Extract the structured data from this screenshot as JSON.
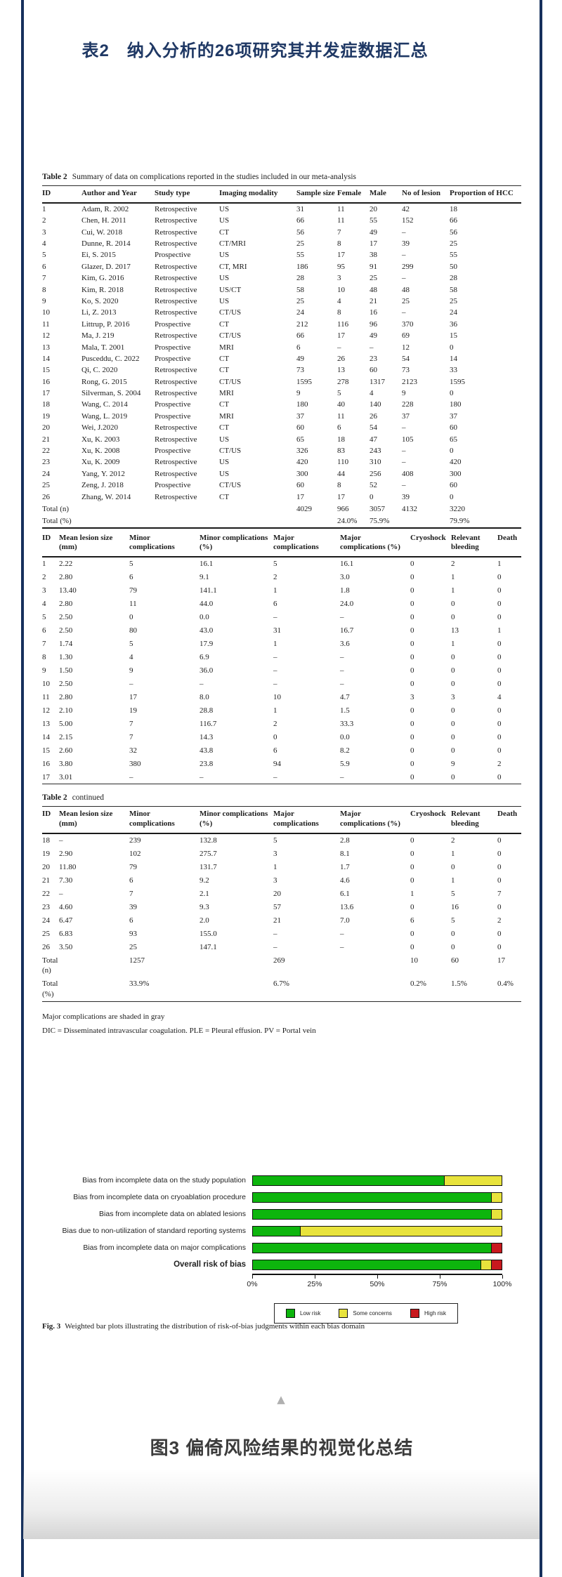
{
  "page": {
    "top_title": "表2　纳入分析的26项研究其并发症数据汇总",
    "bottom_title": "图3 偏倚风险结果的视觉化总结"
  },
  "table2a": {
    "caption_label": "Table 2",
    "caption_text": "Summary of data on complications reported in the studies included in our meta-analysis",
    "columns": [
      "ID",
      "Author and Year",
      "Study type",
      "Imaging modality",
      "Sample size",
      "Female",
      "Male",
      "No of lesion",
      "Proportion of HCC"
    ],
    "rows": [
      [
        "1",
        "Adam, R. 2002",
        "Retrospective",
        "US",
        "31",
        "11",
        "20",
        "42",
        "18"
      ],
      [
        "2",
        "Chen, H. 2011",
        "Retrospective",
        "US",
        "66",
        "11",
        "55",
        "152",
        "66"
      ],
      [
        "3",
        "Cui, W. 2018",
        "Retrospective",
        "CT",
        "56",
        "7",
        "49",
        "–",
        "56"
      ],
      [
        "4",
        "Dunne, R. 2014",
        "Retrospective",
        "CT/MRI",
        "25",
        "8",
        "17",
        "39",
        "25"
      ],
      [
        "5",
        "Ei, S. 2015",
        "Prospective",
        "US",
        "55",
        "17",
        "38",
        "–",
        "55"
      ],
      [
        "6",
        "Glazer, D. 2017",
        "Retrospective",
        "CT, MRI",
        "186",
        "95",
        "91",
        "299",
        "50"
      ],
      [
        "7",
        "Kim, G. 2016",
        "Retrospective",
        "US",
        "28",
        "3",
        "25",
        "–",
        "28"
      ],
      [
        "8",
        "Kim, R. 2018",
        "Retrospective",
        "US/CT",
        "58",
        "10",
        "48",
        "48",
        "58"
      ],
      [
        "9",
        "Ko, S. 2020",
        "Retrospective",
        "US",
        "25",
        "4",
        "21",
        "25",
        "25"
      ],
      [
        "10",
        "Li, Z. 2013",
        "Retrospective",
        "CT/US",
        "24",
        "8",
        "16",
        "–",
        "24"
      ],
      [
        "11",
        "Littrup, P. 2016",
        "Prospective",
        "CT",
        "212",
        "116",
        "96",
        "370",
        "36"
      ],
      [
        "12",
        "Ma, J. 219",
        "Retrospective",
        "CT/US",
        "66",
        "17",
        "49",
        "69",
        "15"
      ],
      [
        "13",
        "Mala, T. 2001",
        "Prospective",
        "MRI",
        "6",
        "–",
        "–",
        "12",
        "0"
      ],
      [
        "14",
        "Pusceddu, C. 2022",
        "Prospective",
        "CT",
        "49",
        "26",
        "23",
        "54",
        "14"
      ],
      [
        "15",
        "Qi, C. 2020",
        "Retrospective",
        "CT",
        "73",
        "13",
        "60",
        "73",
        "33"
      ],
      [
        "16",
        "Rong, G. 2015",
        "Retrospective",
        "CT/US",
        "1595",
        "278",
        "1317",
        "2123",
        "1595"
      ],
      [
        "17",
        "Silverman, S. 2004",
        "Retrospective",
        "MRI",
        "9",
        "5",
        "4",
        "9",
        "0"
      ],
      [
        "18",
        "Wang, C. 2014",
        "Prospective",
        "CT",
        "180",
        "40",
        "140",
        "228",
        "180"
      ],
      [
        "19",
        "Wang, L. 2019",
        "Prospective",
        "MRI",
        "37",
        "11",
        "26",
        "37",
        "37"
      ],
      [
        "20",
        "Wei, J.2020",
        "Retrospective",
        "CT",
        "60",
        "6",
        "54",
        "–",
        "60"
      ],
      [
        "21",
        "Xu, K. 2003",
        "Retrospective",
        "US",
        "65",
        "18",
        "47",
        "105",
        "65"
      ],
      [
        "22",
        "Xu, K. 2008",
        "Prospective",
        "CT/US",
        "326",
        "83",
        "243",
        "–",
        "0"
      ],
      [
        "23",
        "Xu, K. 2009",
        "Retrospective",
        "US",
        "420",
        "110",
        "310",
        "–",
        "420"
      ],
      [
        "24",
        "Yang, Y. 2012",
        "Retrospective",
        "US",
        "300",
        "44",
        "256",
        "408",
        "300"
      ],
      [
        "25",
        "Zeng, J. 2018",
        "Prospective",
        "CT/US",
        "60",
        "8",
        "52",
        "–",
        "60"
      ],
      [
        "26",
        "Zhang, W. 2014",
        "Retrospective",
        "CT",
        "17",
        "17",
        "0",
        "39",
        "0"
      ]
    ],
    "total_rows": [
      [
        "Total (n)",
        "",
        "",
        "",
        "4029",
        "966",
        "3057",
        "4132",
        "3220"
      ],
      [
        "Total (%)",
        "",
        "",
        "",
        "",
        "24.0%",
        "75.9%",
        "",
        "79.9%"
      ]
    ]
  },
  "table2b": {
    "columns": [
      "ID",
      "Mean lesion size (mm)",
      "Minor complications",
      "Minor complications (%)",
      "Major complications",
      "Major complications (%)",
      "Cryoshock",
      "Relevant bleeding",
      "Death"
    ],
    "rows": [
      [
        "1",
        "2.22",
        "5",
        "16.1",
        "5",
        "16.1",
        "0",
        "2",
        "1"
      ],
      [
        "2",
        "2.80",
        "6",
        "9.1",
        "2",
        "3.0",
        "0",
        "1",
        "0"
      ],
      [
        "3",
        "13.40",
        "79",
        "141.1",
        "1",
        "1.8",
        "0",
        "1",
        "0"
      ],
      [
        "4",
        "2.80",
        "11",
        "44.0",
        "6",
        "24.0",
        "0",
        "0",
        "0"
      ],
      [
        "5",
        "2.50",
        "0",
        "0.0",
        "–",
        "–",
        "0",
        "0",
        "0"
      ],
      [
        "6",
        "2.50",
        "80",
        "43.0",
        "31",
        "16.7",
        "0",
        "13",
        "1"
      ],
      [
        "7",
        "1.74",
        "5",
        "17.9",
        "1",
        "3.6",
        "0",
        "1",
        "0"
      ],
      [
        "8",
        "1.30",
        "4",
        "6.9",
        "–",
        "–",
        "0",
        "0",
        "0"
      ],
      [
        "9",
        "1.50",
        "9",
        "36.0",
        "–",
        "–",
        "0",
        "0",
        "0"
      ],
      [
        "10",
        "2.50",
        "–",
        "–",
        "–",
        "–",
        "0",
        "0",
        "0"
      ],
      [
        "11",
        "2.80",
        "17",
        "8.0",
        "10",
        "4.7",
        "3",
        "3",
        "4"
      ],
      [
        "12",
        "2.10",
        "19",
        "28.8",
        "1",
        "1.5",
        "0",
        "0",
        "0"
      ],
      [
        "13",
        "5.00",
        "7",
        "116.7",
        "2",
        "33.3",
        "0",
        "0",
        "0"
      ],
      [
        "14",
        "2.15",
        "7",
        "14.3",
        "0",
        "0.0",
        "0",
        "0",
        "0"
      ],
      [
        "15",
        "2.60",
        "32",
        "43.8",
        "6",
        "8.2",
        "0",
        "0",
        "0"
      ],
      [
        "16",
        "3.80",
        "380",
        "23.8",
        "94",
        "5.9",
        "0",
        "9",
        "2"
      ],
      [
        "17",
        "3.01",
        "–",
        "–",
        "–",
        "–",
        "0",
        "0",
        "0"
      ]
    ],
    "total_rows": []
  },
  "table2c": {
    "continued_label": "Table 2",
    "continued_text": "continued",
    "columns": [
      "ID",
      "Mean lesion size (mm)",
      "Minor complications",
      "Minor complications (%)",
      "Major complications",
      "Major complications (%)",
      "Cryoshock",
      "Relevant bleeding",
      "Death"
    ],
    "rows": [
      [
        "18",
        "–",
        "239",
        "132.8",
        "5",
        "2.8",
        "0",
        "2",
        "0"
      ],
      [
        "19",
        "2.90",
        "102",
        "275.7",
        "3",
        "8.1",
        "0",
        "1",
        "0"
      ],
      [
        "20",
        "11.80",
        "79",
        "131.7",
        "1",
        "1.7",
        "0",
        "0",
        "0"
      ],
      [
        "21",
        "7.30",
        "6",
        "9.2",
        "3",
        "4.6",
        "0",
        "1",
        "0"
      ],
      [
        "22",
        "–",
        "7",
        "2.1",
        "20",
        "6.1",
        "1",
        "5",
        "7"
      ],
      [
        "23",
        "4.60",
        "39",
        "9.3",
        "57",
        "13.6",
        "0",
        "16",
        "0"
      ],
      [
        "24",
        "6.47",
        "6",
        "2.0",
        "21",
        "7.0",
        "6",
        "5",
        "2"
      ],
      [
        "25",
        "6.83",
        "93",
        "155.0",
        "–",
        "–",
        "0",
        "0",
        "0"
      ],
      [
        "26",
        "3.50",
        "25",
        "147.1",
        "–",
        "–",
        "0",
        "0",
        "0"
      ]
    ],
    "total_rows": [
      [
        "Total (n)",
        "",
        "1257",
        "",
        "269",
        "",
        "10",
        "60",
        "17"
      ],
      [
        "Total (%)",
        "",
        "33.9%",
        "",
        "6.7%",
        "",
        "0.2%",
        "1.5%",
        "0.4%"
      ]
    ]
  },
  "footnotes": {
    "line1": "Major complications are shaded in gray",
    "line2": "DIC = Disseminated intravascular coagulation. PLE = Pleural effusion. PV = Portal vein"
  },
  "figure_caption": {
    "label": "Fig. 3",
    "text": "Weighted bar plots illustrating the distribution of risk-of-bias judgments within each bias domain"
  },
  "chart_data": {
    "type": "bar",
    "orientation": "horizontal_stacked",
    "title": "",
    "categories": [
      "Bias from incomplete data on the study population",
      "Bias from incomplete data on cryoablation procedure",
      "Bias from incomplete data on ablated lesions",
      "Bias due to non-utilization of standard reporting systems",
      "Bias from incomplete data on major complications",
      "Overall risk of bias"
    ],
    "bold_category_index": 5,
    "series": [
      {
        "name": "Low risk",
        "color": "#0db50d",
        "values": [
          77,
          96,
          96,
          19,
          96,
          92
        ]
      },
      {
        "name": "Some concerns",
        "color": "#e8e33c",
        "values": [
          23,
          4,
          4,
          81,
          0,
          4
        ]
      },
      {
        "name": "High risk",
        "color": "#c8191e",
        "values": [
          0,
          0,
          0,
          0,
          4,
          4
        ]
      }
    ],
    "x_ticks": [
      "0%",
      "25%",
      "50%",
      "75%",
      "100%"
    ],
    "xlim": [
      0,
      100
    ],
    "legend_position": "bottom",
    "grid": false
  }
}
